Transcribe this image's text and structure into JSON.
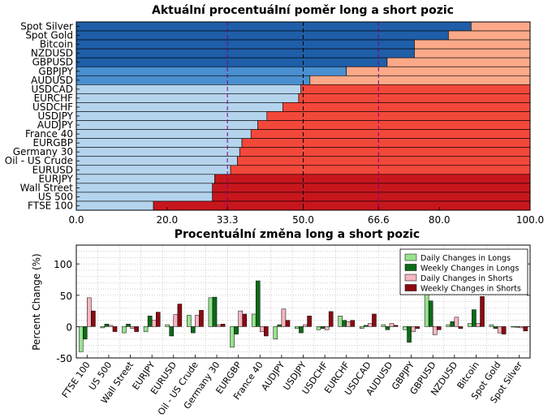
{
  "chart_data": [
    {
      "type": "bar",
      "orientation": "horizontal",
      "stacked": true,
      "title": "Aktuální procentuální poměr long a short pozic",
      "categories": [
        "Spot Silver",
        "Spot Gold",
        "Bitcoin",
        "NZDUSD",
        "GBPUSD",
        "GBPJPY",
        "AUDUSD",
        "USDCAD",
        "EURCHF",
        "USDCHF",
        "USDJPY",
        "AUDJPY",
        "France 40",
        "EURGBP",
        "Germany 30",
        "Oil - US Crude",
        "EURUSD",
        "EURJPY",
        "Wall Street",
        "US 500",
        "FTSE 100"
      ],
      "series": [
        {
          "values": [
            87,
            82,
            74.5,
            74.5,
            68.5,
            59.5,
            51.5,
            49.5,
            49,
            45.5,
            42,
            40,
            38.5,
            36.5,
            36,
            35.5,
            34,
            30.5,
            30,
            30,
            17
          ]
        },
        {
          "values": [
            13,
            18,
            25.5,
            25.5,
            31.5,
            40.5,
            48.5,
            50.5,
            51,
            54.5,
            58,
            60,
            61.5,
            63.5,
            64,
            64.5,
            66,
            69.5,
            70,
            70,
            83
          ]
        }
      ],
      "xlim": [
        0,
        100
      ],
      "xticks": [
        "0.0",
        "20.0",
        "33.3",
        "50.0",
        "66.6",
        "80.0",
        "100.0"
      ],
      "xtick_values": [
        0,
        20,
        33.3,
        50,
        66.6,
        80,
        100
      ],
      "reference_lines": [
        33.3,
        50,
        66.6
      ],
      "colors": {
        "long_dark": "#1f5ea8",
        "long_mid": "#4a8fd0",
        "long_light": "#b4d4ee",
        "short_light": "#fca98a",
        "short_mid": "#f2483a",
        "short_dark": "#c8161d",
        "highlight_tick": "#800080"
      }
    },
    {
      "type": "bar",
      "title": "Procentuální změna long a short pozic",
      "ylabel": "Percent Change (%)",
      "ylim": [
        -50,
        130
      ],
      "yticks": [
        -50,
        0,
        50,
        100
      ],
      "grid": true,
      "legend": "top-right",
      "categories": [
        "FTSE 100",
        "US 500",
        "Wall Street",
        "EURJPY",
        "EURUSD",
        "Oil - US Crude",
        "Germany 30",
        "EURGBP",
        "France 40",
        "AUDJPY",
        "USDJPY",
        "USDCHF",
        "EURCHF",
        "USDCAD",
        "AUDUSD",
        "GBPJPY",
        "GBPUSD",
        "NZDUSD",
        "Bitcoin",
        "Spot Gold",
        "Spot Silver"
      ],
      "series": [
        {
          "name": "Daily Changes in Longs",
          "color": "#98e290",
          "values": [
            -40,
            -2,
            -10,
            -8,
            3,
            18,
            46,
            -33,
            20,
            -20,
            -3,
            -5,
            17,
            -3,
            3,
            -5,
            58,
            3,
            5,
            3,
            0
          ]
        },
        {
          "name": "Weekly Changes in Longs",
          "color": "#0c6b17",
          "values": [
            -20,
            4,
            4,
            17,
            -15,
            -10,
            47,
            -12,
            73,
            3,
            -10,
            -3,
            10,
            2,
            -5,
            -25,
            41,
            8,
            27,
            -3,
            -1
          ]
        },
        {
          "name": "Daily Changes in Shorts",
          "color": "#f5b6c0",
          "values": [
            46,
            2,
            -3,
            10,
            19,
            18,
            3,
            25,
            -8,
            28,
            3,
            -5,
            8,
            5,
            5,
            -8,
            -13,
            15,
            5,
            -10,
            -2
          ]
        },
        {
          "name": "Weekly Changes in Shorts",
          "color": "#8b0a12",
          "values": [
            25,
            -8,
            -8,
            23,
            36,
            26,
            4,
            20,
            -15,
            10,
            17,
            24,
            10,
            20,
            2,
            -3,
            -5,
            -3,
            48,
            -12,
            -7
          ]
        }
      ]
    }
  ]
}
